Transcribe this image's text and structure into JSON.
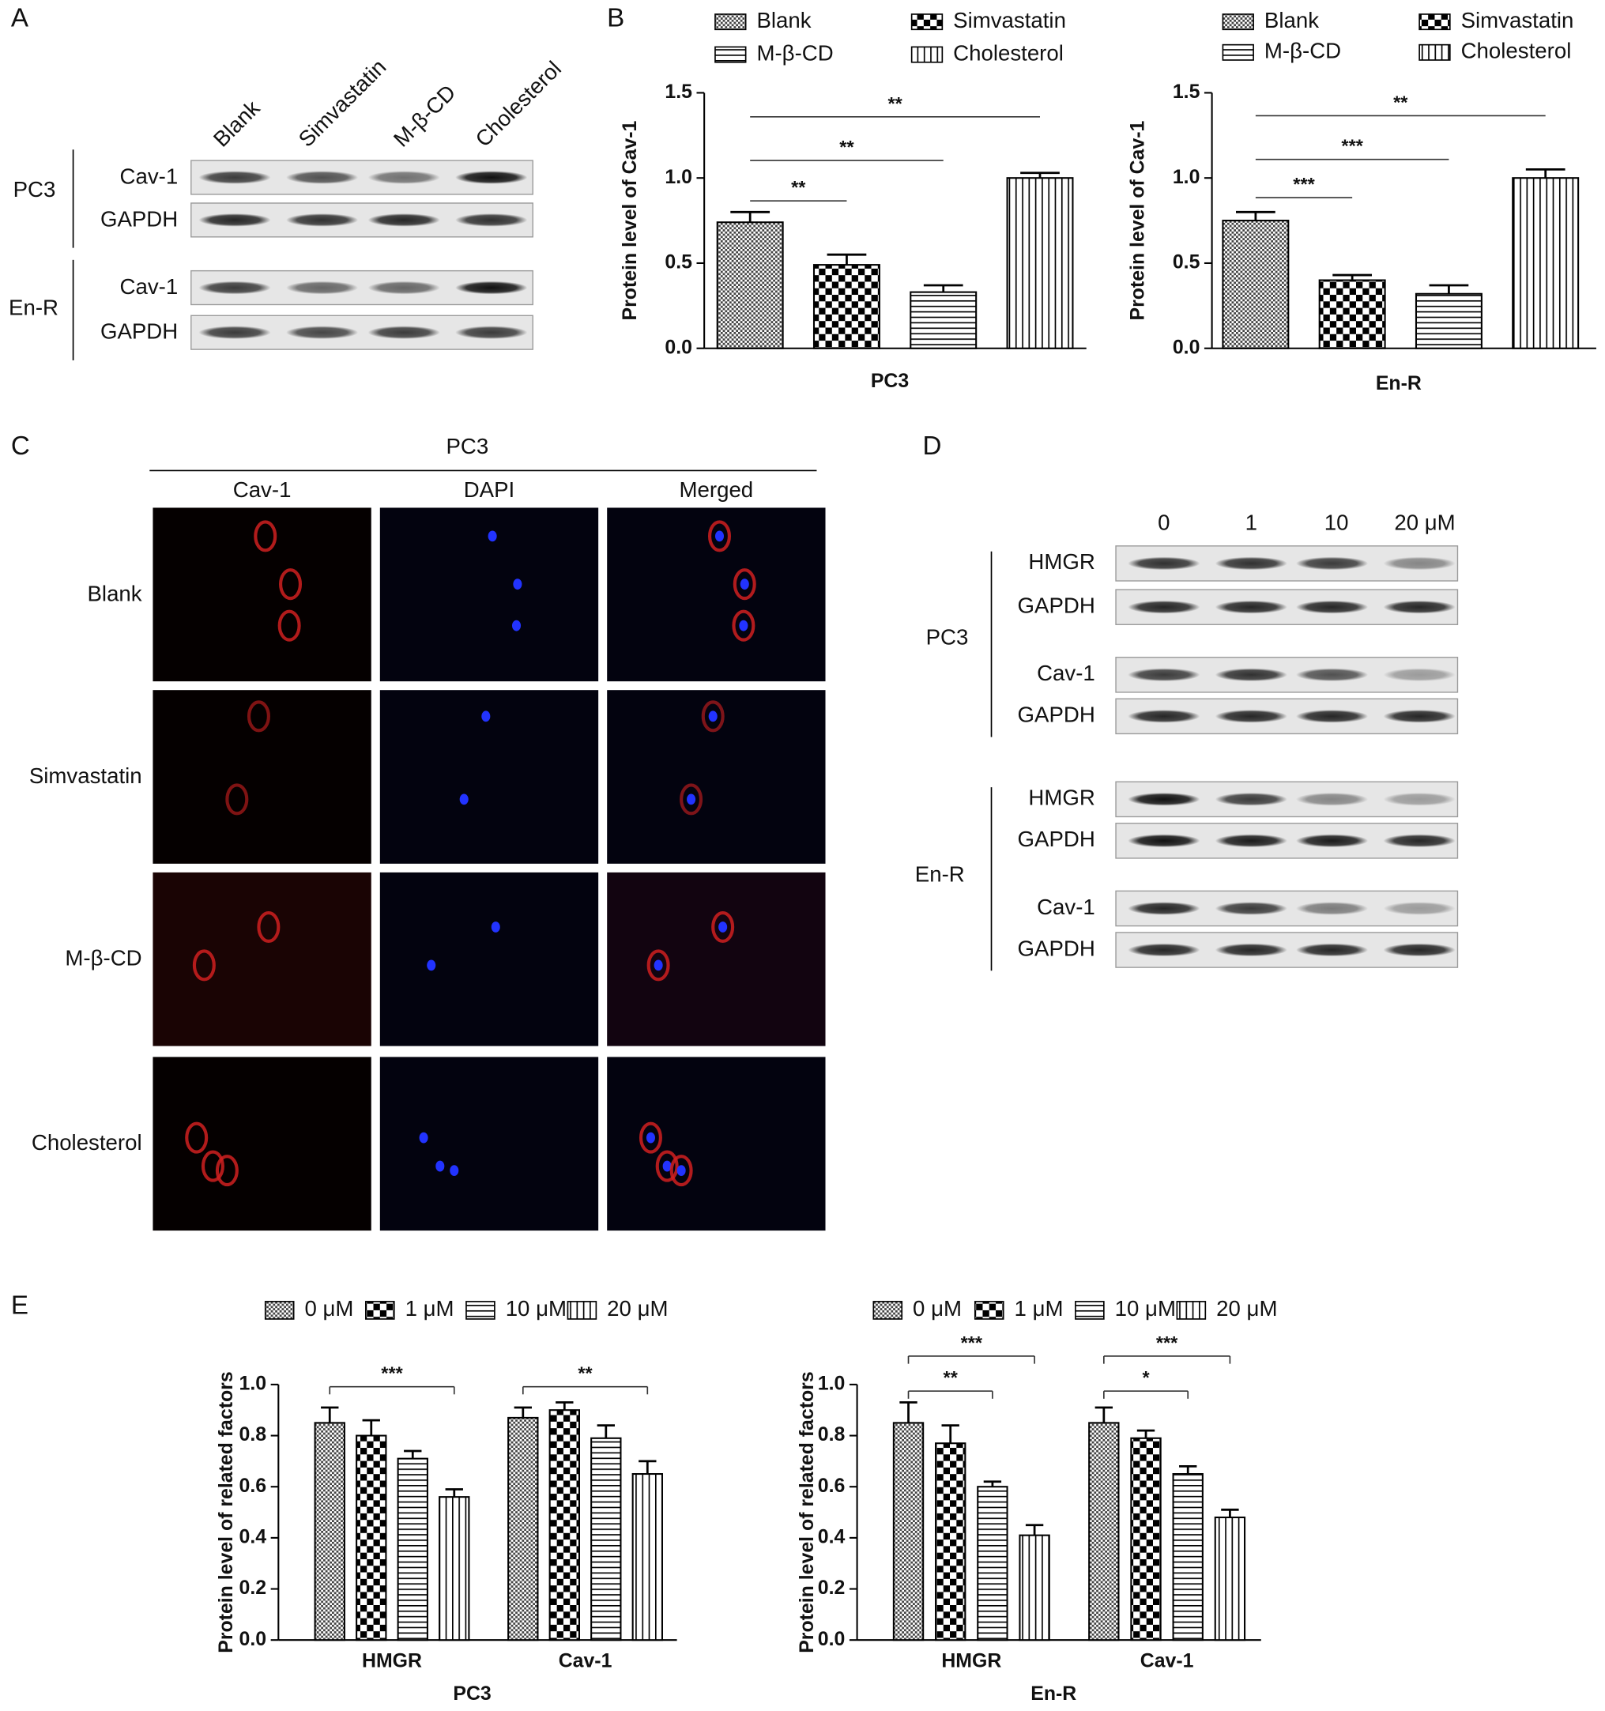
{
  "figure": {
    "panel_labels": [
      "A",
      "B",
      "C",
      "D",
      "E"
    ]
  },
  "panel_a": {
    "lanes": [
      "Blank",
      "Simvastatin",
      "M-β-CD",
      "Cholesterol"
    ],
    "groups": [
      {
        "name": "PC3",
        "rows": [
          "Cav-1",
          "GAPDH"
        ]
      },
      {
        "name": "En-R",
        "rows": [
          "Cav-1",
          "GAPDH"
        ]
      }
    ]
  },
  "panel_c": {
    "title": "PC3",
    "columns": [
      "Cav-1",
      "DAPI",
      "Merged"
    ],
    "rows": [
      "Blank",
      "Simvastatin",
      "M-β-CD",
      "Cholesterol"
    ]
  },
  "panel_d": {
    "lanes": [
      "0",
      "1",
      "10",
      "20 μM"
    ],
    "groups": [
      {
        "name": "PC3",
        "rows": [
          "HMGR",
          "GAPDH",
          "Cav-1",
          "GAPDH"
        ]
      },
      {
        "name": "En-R",
        "rows": [
          "HMGR",
          "GAPDH",
          "Cav-1",
          "GAPDH"
        ]
      }
    ]
  },
  "chart_data": [
    {
      "type": "bar",
      "ylabel": "Protein level of Cav-1",
      "xlabel": "PC3",
      "categories": [
        null
      ],
      "series": [
        {
          "name": "Blank",
          "color": "#000000",
          "pattern": "dense",
          "values": [
            0.74
          ],
          "errors": [
            0.06
          ]
        },
        {
          "name": "Simvastatin",
          "color": "#000000",
          "pattern": "checker",
          "values": [
            0.49
          ],
          "errors": [
            0.06
          ]
        },
        {
          "name": "M-β-CD",
          "color": "#000000",
          "pattern": "horizontal",
          "values": [
            0.33
          ],
          "errors": [
            0.04
          ]
        },
        {
          "name": "Cholesterol",
          "color": "#000000",
          "pattern": "vertical",
          "values": [
            1.0
          ],
          "errors": [
            0.03
          ]
        }
      ],
      "ylim": [
        0,
        1.5
      ],
      "yticks": [
        {
          "value": 0,
          "label": "0.0"
        },
        0.5,
        {
          "value": 1,
          "label": "1.0"
        },
        1.5
      ],
      "annotations": [
        "**",
        "**",
        "**"
      ]
    },
    {
      "type": "bar",
      "ylabel": "Protein level of Cav-1",
      "xlabel": "En-R",
      "categories": [
        null
      ],
      "series": [
        {
          "name": "Blank",
          "color": "#000000",
          "pattern": "dense",
          "values": [
            0.75
          ],
          "errors": [
            0.05
          ]
        },
        {
          "name": "Simvastatin",
          "color": "#000000",
          "pattern": "checker",
          "values": [
            0.4
          ],
          "errors": [
            0.03
          ]
        },
        {
          "name": "M-β-CD",
          "color": "#000000",
          "pattern": "horizontal",
          "values": [
            0.32
          ],
          "errors": [
            0.05
          ]
        },
        {
          "name": "Cholesterol",
          "color": "#000000",
          "pattern": "vertical",
          "values": [
            1.0
          ],
          "errors": [
            0.05
          ]
        }
      ],
      "ylim": [
        0,
        1.5
      ],
      "yticks": [
        {
          "value": 0,
          "label": "0.0"
        },
        0.5,
        {
          "value": 1,
          "label": "1.0"
        },
        1.5
      ],
      "annotations": [
        "***",
        "***",
        "**"
      ]
    },
    {
      "type": "bar",
      "ylabel": "Protein level of related factors",
      "xlabel": "PC3",
      "categories": [
        "HMGR",
        "Cav-1"
      ],
      "series": [
        {
          "name": "0 μM",
          "color": "#000000",
          "pattern": "dense",
          "values": [
            0.85,
            0.87
          ],
          "errors": [
            0.06,
            0.04
          ]
        },
        {
          "name": "1 μM",
          "color": "#000000",
          "pattern": "checker",
          "values": [
            0.8,
            0.9
          ],
          "errors": [
            0.06,
            0.03
          ]
        },
        {
          "name": "10 μM",
          "color": "#000000",
          "pattern": "horizontal",
          "values": [
            0.71,
            0.79
          ],
          "errors": [
            0.03,
            0.05
          ]
        },
        {
          "name": "20 μM",
          "color": "#000000",
          "pattern": "vertical",
          "values": [
            0.56,
            0.65
          ],
          "errors": [
            0.03,
            0.05
          ]
        }
      ],
      "ylim": [
        0,
        1.0
      ],
      "yticks": [
        {
          "value": 0,
          "label": "0.0"
        },
        0.2,
        0.4,
        0.6,
        0.8,
        {
          "value": 1,
          "label": "1.0"
        }
      ],
      "annotations": [
        "***",
        "**"
      ]
    },
    {
      "type": "bar",
      "ylabel": "Protein level of related factors",
      "xlabel": "En-R",
      "categories": [
        "HMGR",
        "Cav-1"
      ],
      "series": [
        {
          "name": "0 μM",
          "color": "#000000",
          "pattern": "dense",
          "values": [
            0.85,
            0.85
          ],
          "errors": [
            0.08,
            0.06
          ]
        },
        {
          "name": "1 μM",
          "color": "#000000",
          "pattern": "checker",
          "values": [
            0.77,
            0.79
          ],
          "errors": [
            0.07,
            0.03
          ]
        },
        {
          "name": "10 μM",
          "color": "#000000",
          "pattern": "horizontal",
          "values": [
            0.6,
            0.65
          ],
          "errors": [
            0.02,
            0.03
          ]
        },
        {
          "name": "20 μM",
          "color": "#000000",
          "pattern": "vertical",
          "values": [
            0.41,
            0.48
          ],
          "errors": [
            0.04,
            0.03
          ]
        }
      ],
      "ylim": [
        0,
        1.0
      ],
      "yticks": [
        {
          "value": 0,
          "label": "0.0"
        },
        0.2,
        0.4,
        0.6,
        0.8,
        {
          "value": 1,
          "label": "1.0"
        }
      ],
      "annotations": [
        "***",
        "**",
        "***",
        "*"
      ]
    }
  ]
}
